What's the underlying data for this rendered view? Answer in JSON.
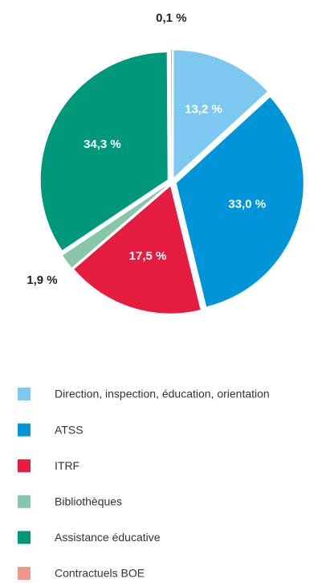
{
  "chart_data": {
    "type": "pie",
    "categories": [
      "Direction, inspection, éducation, orientation",
      "ATSS",
      "ITRF",
      "Bibliothèques",
      "Assistance éducative",
      "Contractuels BOE"
    ],
    "values": [
      13.2,
      33.0,
      17.5,
      1.9,
      34.3,
      0.1
    ],
    "value_labels": [
      "13,2 %",
      "33,0 %",
      "17,5 %",
      "1,9 %",
      "34,3 %",
      "0,1 %"
    ],
    "colors": [
      "#7dc8f0",
      "#0095d8",
      "#e51c40",
      "#88c6a9",
      "#00987b",
      "#f1968b"
    ],
    "legend": "bottom"
  }
}
